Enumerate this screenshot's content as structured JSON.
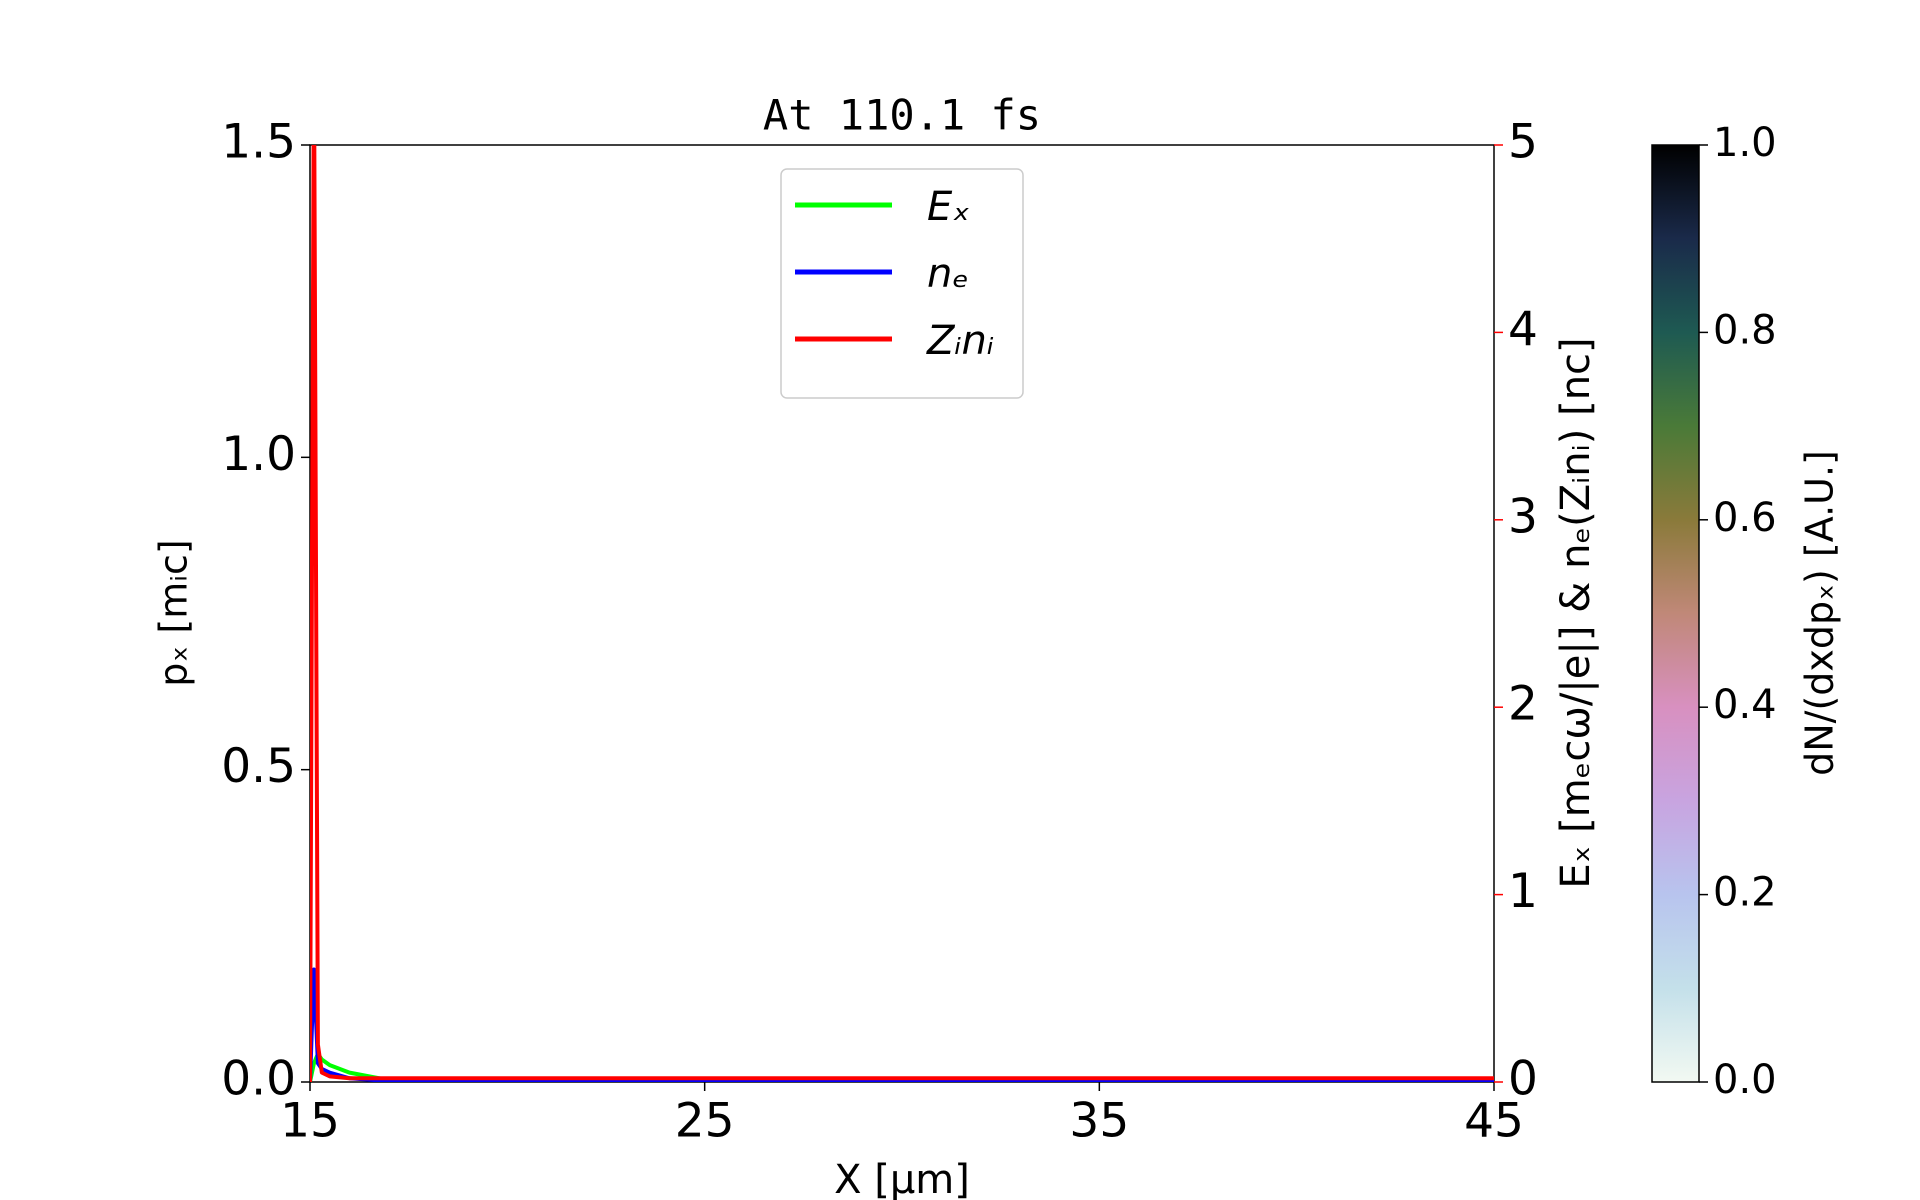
{
  "chart_data": {
    "type": "line",
    "title": "At 110.1 fs",
    "xlabel": "X [μm]",
    "ylabel": "pₓ [mᵢc]",
    "y2label": "Eₓ [mₑcω/|e|] & nₑ(Zᵢnᵢ) [nc]",
    "y2_axis_color": "#ff0000",
    "x": [
      15,
      15.1,
      15.2,
      15.3,
      15.5,
      16,
      17,
      20,
      30,
      45
    ],
    "series": [
      {
        "name": "Eₓ",
        "color": "#00ff00",
        "axis": "y2",
        "values": [
          0,
          0.1,
          0.15,
          0.12,
          0.09,
          0.05,
          0.01,
          0,
          0,
          0
        ]
      },
      {
        "name": "nₑ",
        "color": "#0000ff",
        "axis": "y2",
        "values": [
          0,
          0.6,
          0.1,
          0.07,
          0.05,
          0.02,
          0.005,
          0,
          0,
          0
        ]
      },
      {
        "name": "Zᵢnᵢ",
        "color": "#ff0000",
        "axis": "y2",
        "values": [
          0,
          5.5,
          0.2,
          0.05,
          0.03,
          0.02,
          0.02,
          0.02,
          0.02,
          0.02
        ]
      }
    ],
    "xlim": [
      15,
      45
    ],
    "xticks": [
      15,
      25,
      35,
      45
    ],
    "ylim": [
      0,
      1.5
    ],
    "yticks": [
      {
        "value": 0,
        "label": "0.0"
      },
      {
        "value": 0.5,
        "label": "0.5"
      },
      {
        "value": 1,
        "label": "1.0"
      },
      {
        "value": 1.5,
        "label": "1.5"
      }
    ],
    "y2lim": [
      0,
      5
    ],
    "y2ticks": [
      0,
      1,
      2,
      3,
      4,
      5
    ],
    "legend": "upper center",
    "colorbar": {
      "label": "dN/(dxdpₓ) [A.U.]",
      "lim": [
        0,
        1
      ],
      "ticks": [
        {
          "value": 0,
          "label": "0.0"
        },
        {
          "value": 0.2,
          "label": "0.2"
        },
        {
          "value": 0.4,
          "label": "0.4"
        },
        {
          "value": 0.6,
          "label": "0.6"
        },
        {
          "value": 0.8,
          "label": "0.8"
        },
        {
          "value": 1,
          "label": "1.0"
        }
      ],
      "colors": [
        "#f2f9f2",
        "#c4e0ea",
        "#b8c4ee",
        "#c8a4e0",
        "#d890c0",
        "#c08878",
        "#8a7a3a",
        "#4a7a38",
        "#1e5a52",
        "#1a2a4a",
        "#000000"
      ]
    }
  }
}
